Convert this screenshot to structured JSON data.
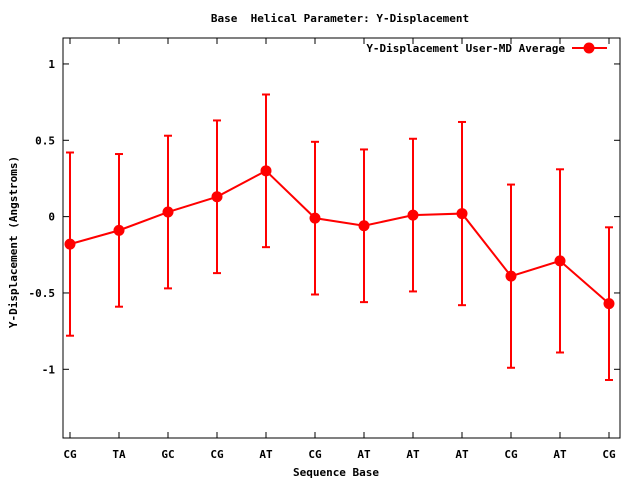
{
  "chart_data": {
    "type": "line",
    "title": "Base  Helical Parameter: Y-Displacement",
    "xlabel": "Sequence Base",
    "ylabel": "Y-Displacement (Angstroms)",
    "ylim": [
      -1.45,
      1.17
    ],
    "y_ticks": [
      "1",
      "0.5",
      "0",
      "-0.5",
      "-1"
    ],
    "y_tick_values": [
      1,
      0.5,
      0,
      -0.5,
      -1
    ],
    "categories": [
      "CG",
      "TA",
      "GC",
      "CG",
      "AT",
      "CG",
      "AT",
      "AT",
      "AT",
      "CG",
      "AT",
      "CG"
    ],
    "grid": false,
    "legend_position": "top-right",
    "series": [
      {
        "name": "Y-Displacement User-MD Average",
        "color": "#ff0000",
        "values": [
          -0.18,
          -0.09,
          0.03,
          0.13,
          0.3,
          -0.01,
          -0.06,
          0.01,
          0.02,
          -0.39,
          -0.29,
          -0.57
        ],
        "err_low": [
          -0.78,
          -0.59,
          -0.47,
          -0.37,
          -0.2,
          -0.51,
          -0.56,
          -0.49,
          -0.58,
          -0.99,
          -0.89,
          -1.07
        ],
        "err_high": [
          0.42,
          0.41,
          0.53,
          0.63,
          0.8,
          0.49,
          0.44,
          0.51,
          0.62,
          0.21,
          0.31,
          -0.07
        ]
      }
    ]
  }
}
